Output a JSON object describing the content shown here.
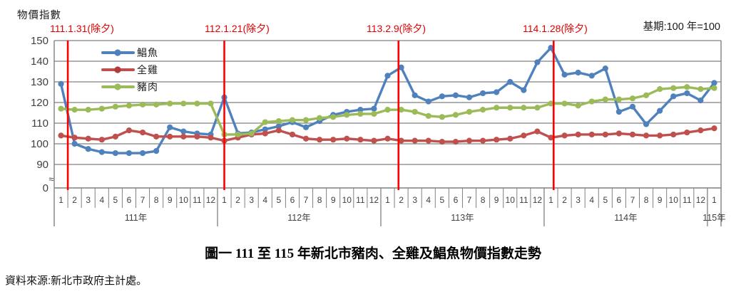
{
  "page": {
    "axis_title": "物價指數",
    "base_period_note": "基期:100 年=100",
    "caption": "圖一  111 至 115 年新北市豬肉、全雞及鯧魚物價指數走勢",
    "source": "資料來源:新北市政府主計處。"
  },
  "colors": {
    "pomfret": "#4F81BD",
    "chicken": "#C0504D",
    "pork": "#9BBB59",
    "event_line": "#FF0000",
    "event_text": "#E00000",
    "gridline": "#808080",
    "tick_text": "#404040"
  },
  "annotations": [
    {
      "label": "111.1.31(除夕)",
      "month_index": 0.5
    },
    {
      "label": "112.1.21(除夕)",
      "month_index": 12.0
    },
    {
      "label": "113.2.9(除夕)",
      "month_index": 24.8
    },
    {
      "label": "114.1.28(除夕)",
      "month_index": 36.2
    }
  ],
  "chart_data": {
    "type": "line",
    "title": "111 至 115 年新北市豬肉、全雞及鯧魚物價指數走勢",
    "ylabel": "物價指數",
    "base_note": "基期:100 年=100",
    "grid": true,
    "legend_position": "top-left-inside",
    "yticks": [
      150,
      140,
      130,
      120,
      110,
      100,
      90
    ],
    "y_axis_break": true,
    "y_base_label": "0",
    "ylim_drawn": [
      90,
      150
    ],
    "months": [
      1,
      2,
      3,
      4,
      5,
      6,
      7,
      8,
      9,
      10,
      11,
      12,
      1,
      2,
      3,
      4,
      5,
      6,
      7,
      8,
      9,
      10,
      11,
      12,
      1,
      2,
      3,
      4,
      5,
      6,
      7,
      8,
      9,
      10,
      11,
      12,
      1,
      2,
      3,
      4,
      5,
      6,
      7,
      8,
      9,
      10,
      11,
      12,
      1
    ],
    "years": [
      {
        "label": "111年",
        "months": 12
      },
      {
        "label": "112年",
        "months": 12
      },
      {
        "label": "113年",
        "months": 12
      },
      {
        "label": "114年",
        "months": 12
      },
      {
        "label": "115年",
        "months": 1
      }
    ],
    "series": [
      {
        "name": "鯧魚",
        "key": "pomfret",
        "values": [
          129,
          100,
          97.5,
          96,
          95.5,
          95.5,
          95.5,
          96.5,
          108,
          106,
          105,
          104.5,
          122.5,
          105,
          105.5,
          107,
          108.5,
          110.5,
          108,
          111,
          114,
          115.5,
          116.5,
          117,
          133,
          137,
          123.5,
          120.5,
          123,
          123.5,
          122.5,
          124.5,
          125,
          130,
          126,
          139.5,
          146.5,
          133.5,
          134.5,
          133,
          136.5,
          115.5,
          118,
          109.5,
          116,
          123,
          124.5,
          121,
          129.5
        ]
      },
      {
        "name": "全雞",
        "key": "chicken",
        "values": [
          104,
          103,
          102.5,
          102,
          103.5,
          106.5,
          105.5,
          103.5,
          103.5,
          103.5,
          103.5,
          103,
          101.5,
          103,
          104.5,
          105,
          106.5,
          104.5,
          102.5,
          102,
          102,
          102.5,
          102,
          101.5,
          102.5,
          101.5,
          101.5,
          101.5,
          101,
          101,
          101.5,
          101.5,
          102,
          102.5,
          104,
          106,
          103,
          104,
          104.5,
          104.5,
          104.5,
          105,
          104.5,
          104,
          104,
          104.5,
          105.5,
          106.5,
          107.5
        ]
      },
      {
        "name": "豬肉",
        "key": "pork",
        "values": [
          117,
          116.5,
          116.5,
          117,
          118,
          118.5,
          119,
          119,
          119.5,
          119.5,
          119.5,
          119.5,
          104.5,
          104.5,
          105,
          110.5,
          111,
          111.5,
          111.5,
          112.5,
          113,
          114,
          114.5,
          114.5,
          116.5,
          116.5,
          115.5,
          113.5,
          113,
          114,
          115.5,
          116.5,
          117.5,
          117.5,
          117.5,
          117.5,
          119.5,
          119.5,
          118.5,
          120.5,
          121.5,
          121.5,
          122,
          123.5,
          126.5,
          127,
          127.5,
          126.5,
          127
        ]
      }
    ]
  }
}
